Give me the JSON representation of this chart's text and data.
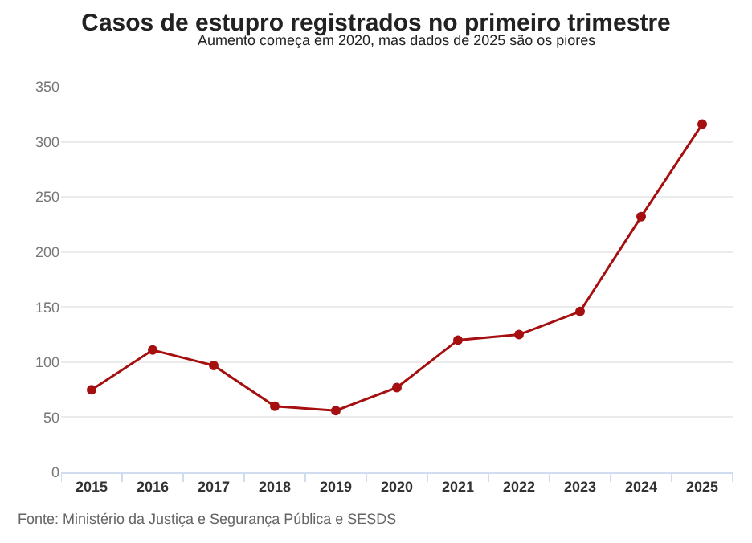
{
  "chart_data": {
    "type": "line",
    "title": "Casos de estupro registrados no primeiro trimestre",
    "subtitle": "Aumento começa em 2020, mas dados de 2025 são os piores",
    "categories": [
      "2015",
      "2016",
      "2017",
      "2018",
      "2019",
      "2020",
      "2021",
      "2022",
      "2023",
      "2024",
      "2025"
    ],
    "series": [
      {
        "color": "#a50f0f",
        "values": [
          75,
          111,
          97,
          60,
          56,
          77,
          120,
          125,
          146,
          232,
          316
        ]
      }
    ],
    "ylim": [
      0,
      350
    ],
    "yticks": [
      0,
      50,
      100,
      150,
      200,
      250,
      300,
      350
    ],
    "grid": "y",
    "marker": "circle",
    "line_style": "solid",
    "annotations": [
      "Fonte: Ministério da Justiça e Segurança Pública e SESDS"
    ]
  }
}
